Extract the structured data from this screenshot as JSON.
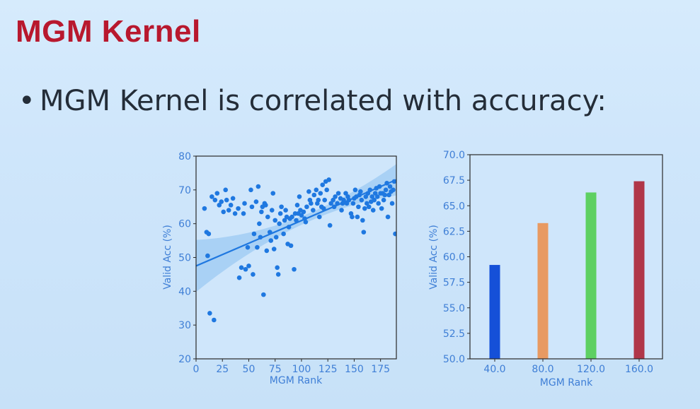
{
  "slide": {
    "title": "MGM Kernel",
    "bullet": "MGM Kernel is correlated with accuracy:"
  },
  "chart_data": [
    {
      "type": "scatter",
      "xlabel": "MGM Rank",
      "ylabel": "Valid Acc (%)",
      "xlim": [
        0,
        190
      ],
      "ylim": [
        20,
        80
      ],
      "xticks": [
        0,
        25,
        50,
        75,
        100,
        125,
        150,
        175
      ],
      "yticks": [
        20,
        30,
        40,
        50,
        60,
        70,
        80
      ],
      "point_color": "#1f78e0",
      "regression": {
        "x": [
          0,
          190
        ],
        "y": [
          47.5,
          73.0
        ]
      },
      "points": [
        [
          8,
          64.5
        ],
        [
          10,
          57.5
        ],
        [
          11,
          50.5
        ],
        [
          12,
          57
        ],
        [
          13,
          33.5
        ],
        [
          15,
          68
        ],
        [
          17,
          31.5
        ],
        [
          18,
          67
        ],
        [
          20,
          69
        ],
        [
          22,
          65.5
        ],
        [
          24,
          66.5
        ],
        [
          26,
          63.5
        ],
        [
          28,
          70
        ],
        [
          29,
          67
        ],
        [
          31,
          64
        ],
        [
          33,
          65.5
        ],
        [
          35,
          67.5
        ],
        [
          37,
          63
        ],
        [
          40,
          64.5
        ],
        [
          41,
          44
        ],
        [
          43,
          47
        ],
        [
          45,
          63
        ],
        [
          46,
          66
        ],
        [
          47,
          46.5
        ],
        [
          49,
          53
        ],
        [
          50,
          47.5
        ],
        [
          52,
          70
        ],
        [
          53,
          65
        ],
        [
          54,
          45
        ],
        [
          55,
          57
        ],
        [
          57,
          66.5
        ],
        [
          58,
          53
        ],
        [
          59,
          71
        ],
        [
          60,
          60
        ],
        [
          61,
          56
        ],
        [
          62,
          63.5
        ],
        [
          63,
          65
        ],
        [
          64,
          39
        ],
        [
          65,
          66
        ],
        [
          66,
          65.5
        ],
        [
          67,
          52
        ],
        [
          68,
          62
        ],
        [
          70,
          57.5
        ],
        [
          71,
          55
        ],
        [
          72,
          64
        ],
        [
          73,
          69
        ],
        [
          74,
          52.5
        ],
        [
          75,
          61
        ],
        [
          76,
          56
        ],
        [
          77,
          47
        ],
        [
          78,
          45
        ],
        [
          79,
          60
        ],
        [
          80,
          63
        ],
        [
          81,
          65
        ],
        [
          83,
          57
        ],
        [
          84,
          61
        ],
        [
          85,
          64
        ],
        [
          86,
          62
        ],
        [
          87,
          54
        ],
        [
          88,
          59
        ],
        [
          89,
          61.5
        ],
        [
          90,
          53.5
        ],
        [
          91,
          62
        ],
        [
          93,
          46.5
        ],
        [
          94,
          63
        ],
        [
          95,
          61
        ],
        [
          96,
          65.5
        ],
        [
          97,
          63
        ],
        [
          98,
          68
        ],
        [
          99,
          64
        ],
        [
          100,
          62.5
        ],
        [
          102,
          63.5
        ],
        [
          103,
          61.5
        ],
        [
          104,
          60.5
        ],
        [
          105,
          65
        ],
        [
          107,
          69.5
        ],
        [
          108,
          67
        ],
        [
          109,
          66
        ],
        [
          111,
          64
        ],
        [
          112,
          68.5
        ],
        [
          114,
          70
        ],
        [
          115,
          66
        ],
        [
          116,
          67
        ],
        [
          117,
          62
        ],
        [
          118,
          69
        ],
        [
          119,
          65
        ],
        [
          120,
          71.5
        ],
        [
          121,
          64.5
        ],
        [
          122,
          67
        ],
        [
          123,
          72.5
        ],
        [
          124,
          70
        ],
        [
          126,
          73
        ],
        [
          127,
          59.5
        ],
        [
          128,
          66
        ],
        [
          130,
          67
        ],
        [
          131,
          65
        ],
        [
          132,
          68
        ],
        [
          134,
          66
        ],
        [
          135,
          69
        ],
        [
          137,
          67.5
        ],
        [
          138,
          64
        ],
        [
          139,
          66
        ],
        [
          140,
          67
        ],
        [
          142,
          69
        ],
        [
          143,
          66
        ],
        [
          144,
          68
        ],
        [
          145,
          67
        ],
        [
          147,
          63
        ],
        [
          148,
          62
        ],
        [
          149,
          66
        ],
        [
          150,
          67.5
        ],
        [
          151,
          70
        ],
        [
          152,
          68
        ],
        [
          153,
          62
        ],
        [
          154,
          65
        ],
        [
          155,
          68.5
        ],
        [
          156,
          69.5
        ],
        [
          157,
          67
        ],
        [
          158,
          61
        ],
        [
          159,
          57.5
        ],
        [
          160,
          64.5
        ],
        [
          161,
          68
        ],
        [
          162,
          66
        ],
        [
          163,
          69
        ],
        [
          164,
          65
        ],
        [
          165,
          70
        ],
        [
          166,
          66.5
        ],
        [
          167,
          68
        ],
        [
          168,
          64
        ],
        [
          169,
          67
        ],
        [
          170,
          69
        ],
        [
          171,
          70.5
        ],
        [
          172,
          68
        ],
        [
          173,
          66
        ],
        [
          174,
          71
        ],
        [
          175,
          69
        ],
        [
          176,
          64.5
        ],
        [
          177,
          69
        ],
        [
          178,
          67
        ],
        [
          179,
          68.5
        ],
        [
          180,
          70
        ],
        [
          181,
          72
        ],
        [
          182,
          62
        ],
        [
          183,
          68.5
        ],
        [
          184,
          71
        ],
        [
          185,
          69.5
        ],
        [
          186,
          66
        ],
        [
          187,
          70
        ],
        [
          188,
          72.5
        ],
        [
          189,
          57
        ]
      ]
    },
    {
      "type": "bar",
      "xlabel": "MGM Rank",
      "ylabel": "Valid Acc (%)",
      "ylim": [
        50.0,
        70.0
      ],
      "yticks": [
        "50.0",
        "52.5",
        "55.0",
        "57.5",
        "60.0",
        "62.5",
        "65.0",
        "67.5",
        "70.0"
      ],
      "categories": [
        "40.0",
        "80.0",
        "120.0",
        "160.0"
      ],
      "values": [
        59.2,
        63.3,
        66.3,
        67.4
      ],
      "colors": [
        "#1550d8",
        "#e89a62",
        "#5ed062",
        "#b03648"
      ]
    }
  ]
}
